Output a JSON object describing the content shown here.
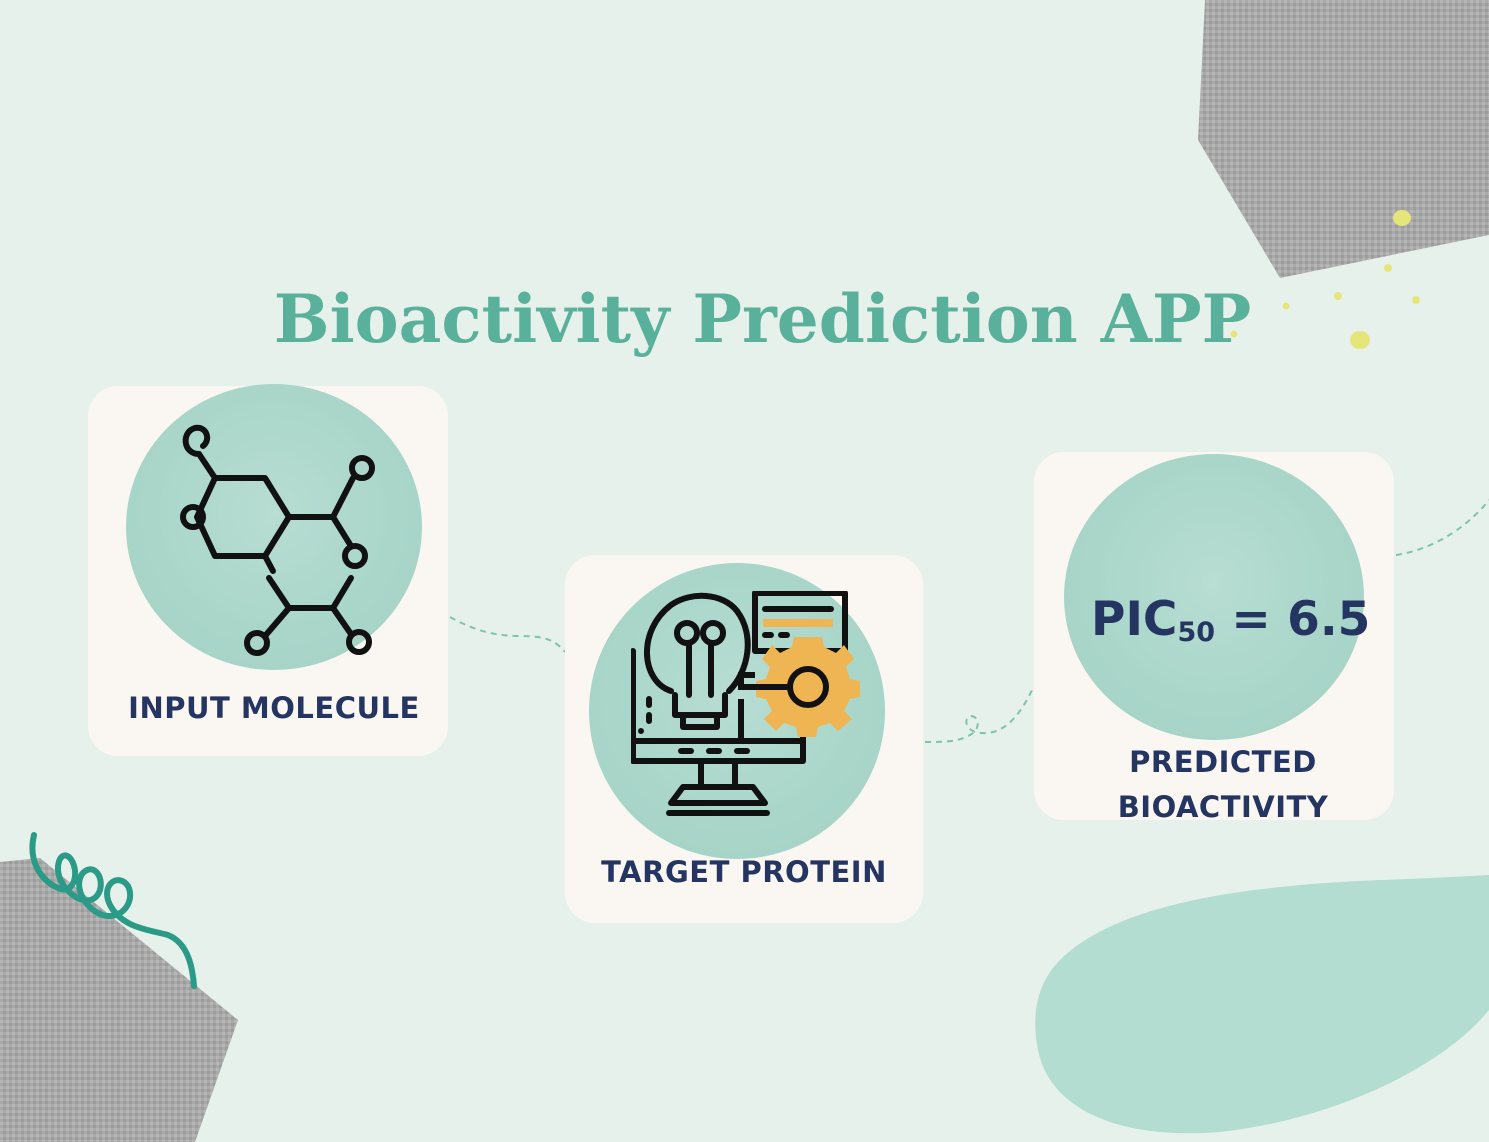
{
  "title": "Bioactivity Prediction APP",
  "steps": {
    "input": {
      "label": "INPUT MOLECULE",
      "icon": "molecule-icon"
    },
    "target": {
      "label": "TARGET PROTEIN",
      "icon": "computer-lightbulb-gear-icon"
    },
    "output": {
      "label_line1": "PREDICTED",
      "label_line2": "BIOACTIVITY",
      "value_prefix": "PIC",
      "value_subscript": "50",
      "value_suffix": " = 6.5"
    }
  },
  "colors": {
    "background": "#e7f1eb",
    "title": "#5ab19b",
    "label": "#253562",
    "card": "#faf7f2",
    "blob": "#aad6ca",
    "accent_gear": "#efb552",
    "squiggle": "#2b9a86"
  }
}
